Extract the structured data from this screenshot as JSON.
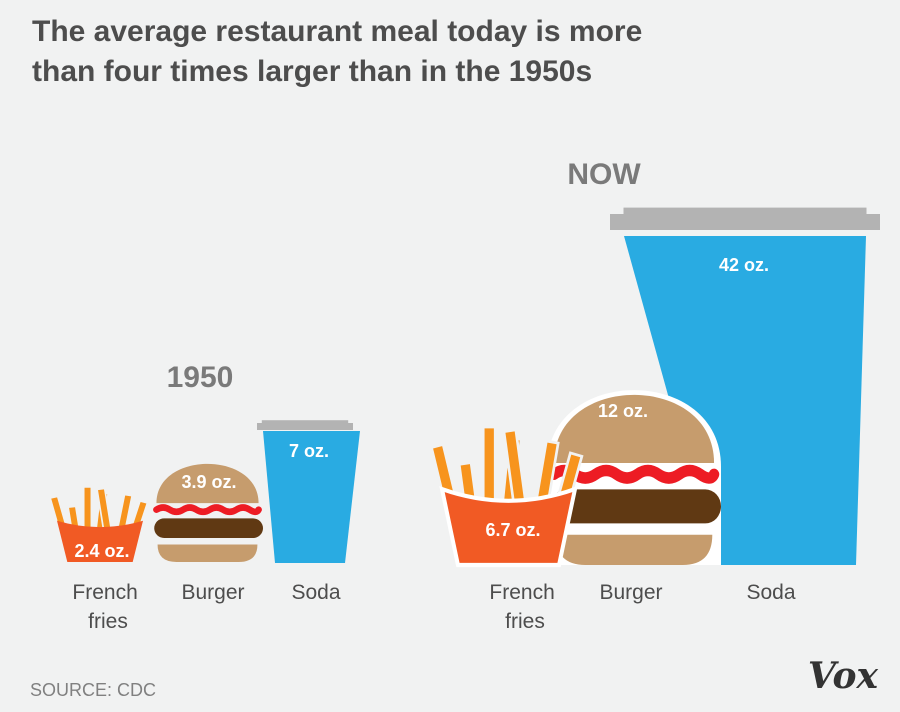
{
  "title_line1": "The average restaurant meal today is more",
  "title_line2": "than four times larger than in the 1950s",
  "source": "SOURCE: CDC",
  "logo": "Vox",
  "colors": {
    "background": "#f1f2f2",
    "fries_box": "#f15a24",
    "fries": "#f7941d",
    "bun": "#c69c6d",
    "ketchup": "#ed1c24",
    "patty": "#603913",
    "soda": "#29abe2",
    "lid": "#b3b3b3"
  },
  "chart_data": {
    "type": "pictorial",
    "title": "The average restaurant meal today is more than four times larger than in the 1950s",
    "unit": "oz.",
    "categories": [
      "French fries",
      "Burger",
      "Soda"
    ],
    "category_labels": [
      [
        "French",
        "fries"
      ],
      [
        "Burger"
      ],
      [
        "Soda"
      ]
    ],
    "series": [
      {
        "name": "1950",
        "values": [
          2.4,
          3.9,
          7
        ],
        "value_labels": [
          "2.4 oz.",
          "3.9 oz.",
          "7 oz."
        ]
      },
      {
        "name": "NOW",
        "values": [
          6.7,
          12,
          42
        ],
        "value_labels": [
          "6.7 oz.",
          "12 oz.",
          "42 oz."
        ]
      }
    ]
  }
}
